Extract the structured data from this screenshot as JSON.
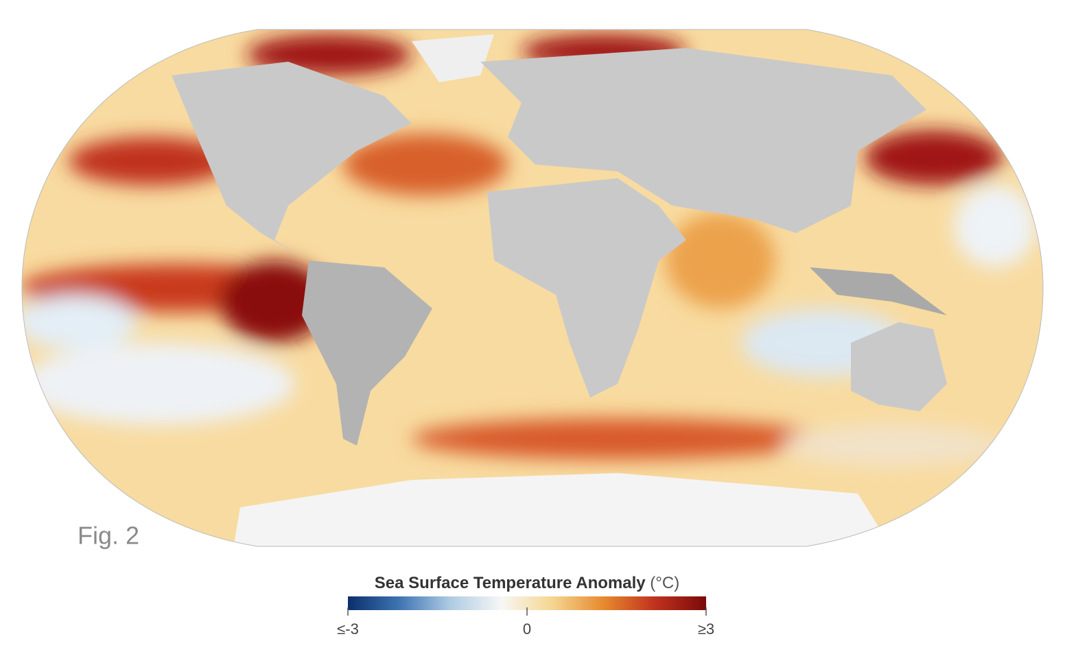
{
  "figure_label": "Fig. 2",
  "colorbar": {
    "title": "Sea Surface Temperature Anomaly",
    "unit": "(°C)",
    "lim": [
      -3,
      3
    ],
    "ticks": [
      {
        "value": -3,
        "label": "≤-3"
      },
      0,
      {
        "value": 3,
        "label": "≥3"
      }
    ],
    "colors": [
      "#0b2f6b",
      "#3e74b2",
      "#aecbe3",
      "#f7f7f5",
      "#f5d690",
      "#e7892f",
      "#c0321e",
      "#7a0a0a"
    ]
  }
}
